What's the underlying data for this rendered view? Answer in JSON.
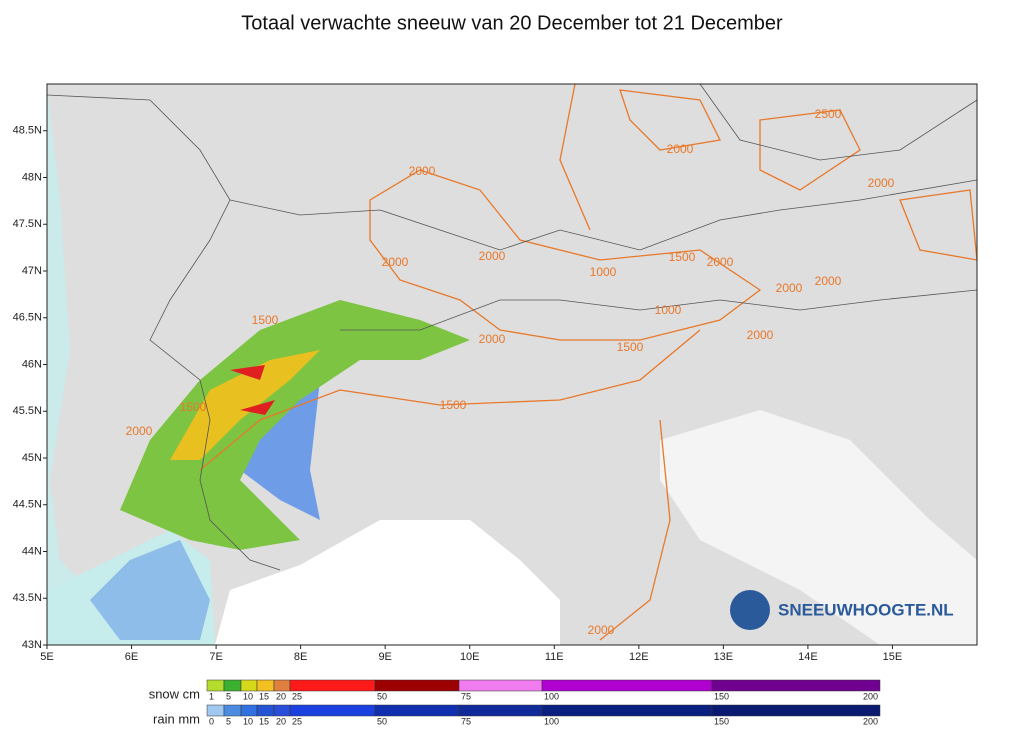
{
  "title": "Totaal verwachte sneeuw van 20 December tot 21 December",
  "map": {
    "lon_range": [
      5,
      16
    ],
    "lat_range": [
      43,
      49
    ],
    "lon_ticks": [
      {
        "value": 5,
        "label": "5E"
      },
      {
        "value": 6,
        "label": "6E"
      },
      {
        "value": 7,
        "label": "7E"
      },
      {
        "value": 8,
        "label": "8E"
      },
      {
        "value": 9,
        "label": "9E"
      },
      {
        "value": 10,
        "label": "10E"
      },
      {
        "value": 11,
        "label": "11E"
      },
      {
        "value": 12,
        "label": "12E"
      },
      {
        "value": 13,
        "label": "13E"
      },
      {
        "value": 14,
        "label": "14E"
      },
      {
        "value": 15,
        "label": "15E"
      }
    ],
    "lat_ticks": [
      {
        "value": 43,
        "label": "43N"
      },
      {
        "value": 43.5,
        "label": "43.5N"
      },
      {
        "value": 44,
        "label": "44N"
      },
      {
        "value": 44.5,
        "label": "44.5N"
      },
      {
        "value": 45,
        "label": "45N"
      },
      {
        "value": 45.5,
        "label": "45.5N"
      },
      {
        "value": 46,
        "label": "46N"
      },
      {
        "value": 46.5,
        "label": "46.5N"
      },
      {
        "value": 47,
        "label": "47N"
      },
      {
        "value": 47.5,
        "label": "47.5N"
      },
      {
        "value": 48,
        "label": "48N"
      },
      {
        "value": 48.5,
        "label": "48.5N"
      }
    ],
    "contour_labels": [
      "2000",
      "2000",
      "2000",
      "1500",
      "1000",
      "1500",
      "2000",
      "1000",
      "1500",
      "1500",
      "2000",
      "2000",
      "1500",
      "2000",
      "2000",
      "2000",
      "2000",
      "2000",
      "2500",
      "2000"
    ],
    "logo": "SNEEUWHOOGTE.NL"
  },
  "legend": {
    "snow": {
      "label": "snow cm",
      "stops": [
        1,
        5,
        10,
        15,
        20,
        25,
        50,
        75,
        100,
        150,
        200
      ],
      "colors": [
        "#b4dc2c",
        "#3cb030",
        "#d6d81c",
        "#f2c020",
        "#e08040",
        "#ff1a1a",
        "#9c0000",
        "#f07cf0",
        "#b000d0",
        "#700090"
      ]
    },
    "rain": {
      "label": "rain mm",
      "stops": [
        0,
        5,
        10,
        15,
        20,
        25,
        50,
        75,
        100,
        150,
        200
      ],
      "colors": [
        "#a0c8f0",
        "#4c8ce0",
        "#3070e0",
        "#2454d4",
        "#2a4ed8",
        "#1a40e0",
        "#1030b0",
        "#102a9a",
        "#0a2080",
        "#0a1a70"
      ]
    }
  }
}
